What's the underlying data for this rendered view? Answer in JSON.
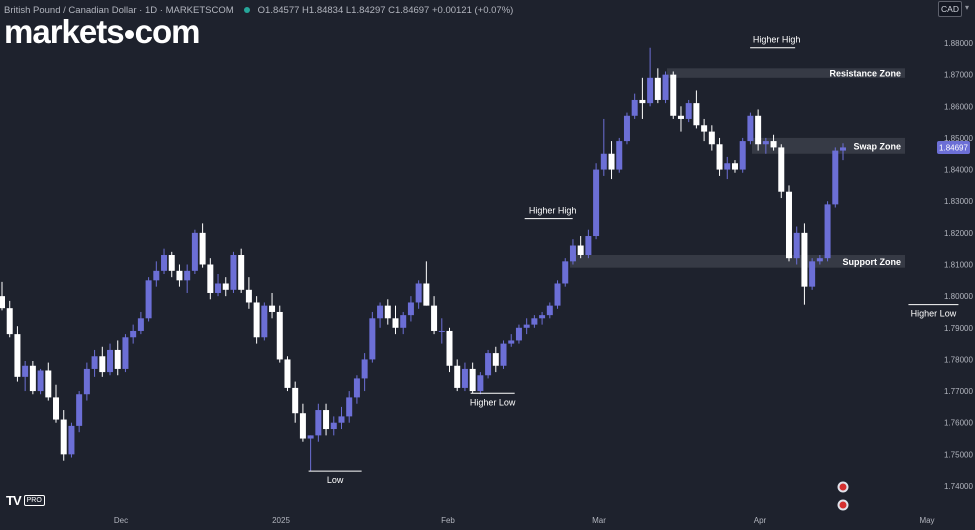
{
  "header": {
    "symbol_title": "British Pound / Canadian Dollar · 1D · MARKETSCOM",
    "ohlc_text": "O1.84577 H1.84834 L1.84297 C1.84697 +0.00121 (+0.07%)",
    "currency_button": "CAD",
    "brand_logo": "markets.com"
  },
  "footer": {
    "tv_mark": "TV",
    "tv_pro": "PRO"
  },
  "colors": {
    "background": "#1e222d",
    "bull_candle": "#6c6fd6",
    "bear_candle": "#ffffff",
    "zone": "#363a45",
    "price_badge": "#6c6fd6"
  },
  "chart_data": {
    "type": "candlestick",
    "instrument": "GBP/CAD",
    "timeframe": "1D",
    "y_axis": {
      "ticks": [
        "1.88000",
        "1.87000",
        "1.86000",
        "1.85000",
        "1.84000",
        "1.83000",
        "1.82000",
        "1.81000",
        "1.80000",
        "1.79000",
        "1.78000",
        "1.77000",
        "1.76000",
        "1.75000",
        "1.74000"
      ],
      "range": [
        1.734,
        1.8835
      ]
    },
    "x_axis": {
      "labels": [
        "Dec",
        "2025",
        "Feb",
        "Mar",
        "Apr",
        "May"
      ]
    },
    "current_price": "1.84697",
    "zones": [
      {
        "label": "Resistance Zone",
        "low": 1.869,
        "high": 1.872
      },
      {
        "label": "Swap Zone",
        "low": 1.845,
        "high": 1.85
      },
      {
        "label": "Support Zone",
        "low": 1.809,
        "high": 1.813
      }
    ],
    "annotations": [
      {
        "label": "Higher High",
        "price": 1.8245
      },
      {
        "label": "Higher High",
        "price": 1.8785
      },
      {
        "label": "Low",
        "price": 1.7447
      },
      {
        "label": "Higher Low",
        "price": 1.7693
      },
      {
        "label": "Higher Low",
        "price": 1.7973
      }
    ],
    "candles": [
      [
        1.8,
        1.8045,
        1.7955,
        1.7962
      ],
      [
        1.7962,
        1.7985,
        1.787,
        1.788
      ],
      [
        1.788,
        1.7905,
        1.773,
        1.7745
      ],
      [
        1.7745,
        1.7795,
        1.77,
        1.778
      ],
      [
        1.778,
        1.7795,
        1.769,
        1.77
      ],
      [
        1.77,
        1.777,
        1.769,
        1.7765
      ],
      [
        1.7765,
        1.779,
        1.767,
        1.768
      ],
      [
        1.768,
        1.772,
        1.76,
        1.761
      ],
      [
        1.761,
        1.764,
        1.748,
        1.75
      ],
      [
        1.75,
        1.76,
        1.749,
        1.759
      ],
      [
        1.759,
        1.77,
        1.757,
        1.769
      ],
      [
        1.769,
        1.779,
        1.767,
        1.777
      ],
      [
        1.777,
        1.783,
        1.7745,
        1.781
      ],
      [
        1.781,
        1.784,
        1.7745,
        1.776
      ],
      [
        1.776,
        1.785,
        1.775,
        1.783
      ],
      [
        1.783,
        1.786,
        1.775,
        1.777
      ],
      [
        1.777,
        1.788,
        1.776,
        1.787
      ],
      [
        1.787,
        1.791,
        1.785,
        1.789
      ],
      [
        1.789,
        1.795,
        1.788,
        1.793
      ],
      [
        1.793,
        1.806,
        1.792,
        1.805
      ],
      [
        1.805,
        1.811,
        1.803,
        1.808
      ],
      [
        1.808,
        1.815,
        1.807,
        1.813
      ],
      [
        1.813,
        1.814,
        1.806,
        1.808
      ],
      [
        1.808,
        1.81,
        1.803,
        1.805
      ],
      [
        1.805,
        1.81,
        1.801,
        1.808
      ],
      [
        1.808,
        1.821,
        1.807,
        1.82
      ],
      [
        1.82,
        1.823,
        1.809,
        1.81
      ],
      [
        1.81,
        1.812,
        1.799,
        1.801
      ],
      [
        1.801,
        1.807,
        1.8,
        1.804
      ],
      [
        1.804,
        1.806,
        1.8,
        1.802
      ],
      [
        1.802,
        1.814,
        1.801,
        1.813
      ],
      [
        1.813,
        1.815,
        1.801,
        1.802
      ],
      [
        1.802,
        1.806,
        1.796,
        1.798
      ],
      [
        1.798,
        1.8,
        1.785,
        1.787
      ],
      [
        1.787,
        1.798,
        1.786,
        1.797
      ],
      [
        1.797,
        1.801,
        1.793,
        1.795
      ],
      [
        1.795,
        1.797,
        1.779,
        1.78
      ],
      [
        1.78,
        1.781,
        1.77,
        1.771
      ],
      [
        1.771,
        1.773,
        1.76,
        1.763
      ],
      [
        1.763,
        1.766,
        1.754,
        1.755
      ],
      [
        1.755,
        1.756,
        1.7447,
        1.756
      ],
      [
        1.756,
        1.766,
        1.754,
        1.764
      ],
      [
        1.764,
        1.766,
        1.756,
        1.758
      ],
      [
        1.758,
        1.762,
        1.756,
        1.76
      ],
      [
        1.76,
        1.765,
        1.758,
        1.762
      ],
      [
        1.762,
        1.77,
        1.76,
        1.768
      ],
      [
        1.768,
        1.775,
        1.766,
        1.774
      ],
      [
        1.774,
        1.782,
        1.77,
        1.78
      ],
      [
        1.78,
        1.795,
        1.779,
        1.793
      ],
      [
        1.793,
        1.798,
        1.79,
        1.797
      ],
      [
        1.797,
        1.799,
        1.791,
        1.793
      ],
      [
        1.793,
        1.797,
        1.788,
        1.79
      ],
      [
        1.79,
        1.795,
        1.788,
        1.794
      ],
      [
        1.794,
        1.8,
        1.792,
        1.798
      ],
      [
        1.798,
        1.805,
        1.796,
        1.804
      ],
      [
        1.804,
        1.811,
        1.797,
        1.797
      ],
      [
        1.797,
        1.8,
        1.788,
        1.789
      ],
      [
        1.789,
        1.793,
        1.785,
        1.789
      ],
      [
        1.789,
        1.79,
        1.776,
        1.778
      ],
      [
        1.778,
        1.78,
        1.77,
        1.771
      ],
      [
        1.771,
        1.779,
        1.77,
        1.777
      ],
      [
        1.777,
        1.779,
        1.7693,
        1.77
      ],
      [
        1.77,
        1.776,
        1.769,
        1.775
      ],
      [
        1.775,
        1.783,
        1.774,
        1.782
      ],
      [
        1.782,
        1.784,
        1.776,
        1.778
      ],
      [
        1.778,
        1.786,
        1.777,
        1.785
      ],
      [
        1.785,
        1.788,
        1.784,
        1.786
      ],
      [
        1.786,
        1.791,
        1.785,
        1.79
      ],
      [
        1.79,
        1.793,
        1.788,
        1.791
      ],
      [
        1.791,
        1.794,
        1.79,
        1.793
      ],
      [
        1.793,
        1.795,
        1.791,
        1.794
      ],
      [
        1.794,
        1.798,
        1.793,
        1.797
      ],
      [
        1.797,
        1.805,
        1.796,
        1.804
      ],
      [
        1.804,
        1.812,
        1.803,
        1.811
      ],
      [
        1.811,
        1.818,
        1.81,
        1.816
      ],
      [
        1.816,
        1.819,
        1.812,
        1.813
      ],
      [
        1.813,
        1.821,
        1.812,
        1.819
      ],
      [
        1.819,
        1.842,
        1.818,
        1.84
      ],
      [
        1.84,
        1.856,
        1.838,
        1.845
      ],
      [
        1.845,
        1.849,
        1.837,
        1.84
      ],
      [
        1.84,
        1.85,
        1.839,
        1.849
      ],
      [
        1.849,
        1.858,
        1.848,
        1.857
      ],
      [
        1.857,
        1.864,
        1.856,
        1.862
      ],
      [
        1.862,
        1.869,
        1.856,
        1.861
      ],
      [
        1.861,
        1.8785,
        1.86,
        1.869
      ],
      [
        1.869,
        1.872,
        1.861,
        1.862
      ],
      [
        1.862,
        1.871,
        1.861,
        1.87
      ],
      [
        1.87,
        1.871,
        1.856,
        1.857
      ],
      [
        1.857,
        1.86,
        1.852,
        1.856
      ],
      [
        1.856,
        1.862,
        1.855,
        1.861
      ],
      [
        1.861,
        1.865,
        1.853,
        1.854
      ],
      [
        1.854,
        1.856,
        1.849,
        1.852
      ],
      [
        1.852,
        1.854,
        1.846,
        1.848
      ],
      [
        1.848,
        1.85,
        1.838,
        1.84
      ],
      [
        1.84,
        1.844,
        1.837,
        1.842
      ],
      [
        1.842,
        1.843,
        1.839,
        1.84
      ],
      [
        1.84,
        1.85,
        1.839,
        1.849
      ],
      [
        1.849,
        1.858,
        1.848,
        1.857
      ],
      [
        1.857,
        1.859,
        1.846,
        1.848
      ],
      [
        1.848,
        1.85,
        1.845,
        1.849
      ],
      [
        1.849,
        1.851,
        1.846,
        1.847
      ],
      [
        1.847,
        1.848,
        1.831,
        1.833
      ],
      [
        1.833,
        1.835,
        1.811,
        1.812
      ],
      [
        1.812,
        1.822,
        1.81,
        1.82
      ],
      [
        1.82,
        1.823,
        1.7973,
        1.803
      ],
      [
        1.803,
        1.812,
        1.802,
        1.811
      ],
      [
        1.811,
        1.813,
        1.81,
        1.812
      ],
      [
        1.812,
        1.83,
        1.811,
        1.829
      ],
      [
        1.829,
        1.847,
        1.828,
        1.846
      ],
      [
        1.846,
        1.8483,
        1.843,
        1.847
      ]
    ]
  }
}
